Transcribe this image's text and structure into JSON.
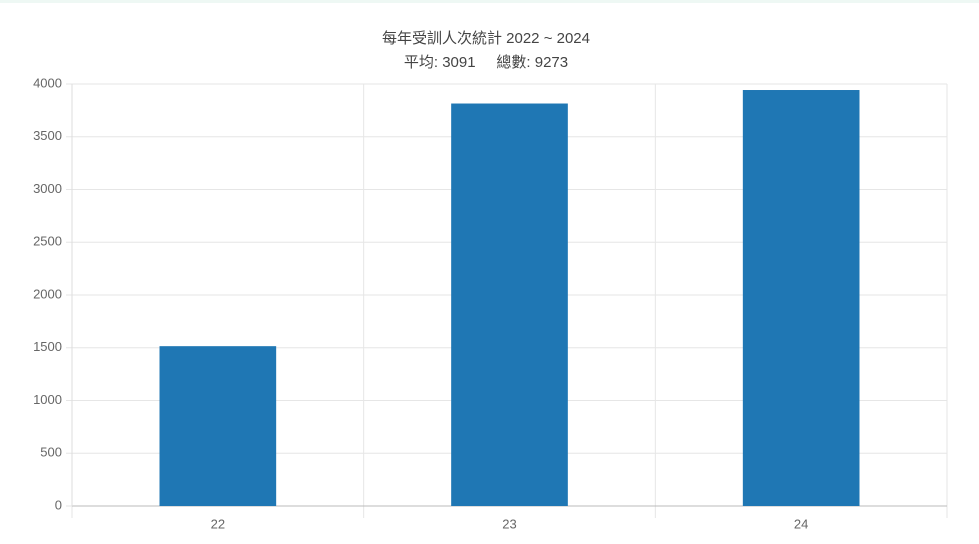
{
  "chart_data": {
    "type": "bar",
    "title": "每年受訓人次統計 2022 ~ 2024",
    "subtitle": "平均: 3091     總數: 9273",
    "categories": [
      "22",
      "23",
      "24"
    ],
    "values": [
      1515,
      3815,
      3943
    ],
    "color": "#1f77b4",
    "ylim": [
      0,
      4000
    ],
    "yticks": [
      0,
      500,
      1000,
      1500,
      2000,
      2500,
      3000,
      3500,
      4000
    ],
    "grid": true
  }
}
